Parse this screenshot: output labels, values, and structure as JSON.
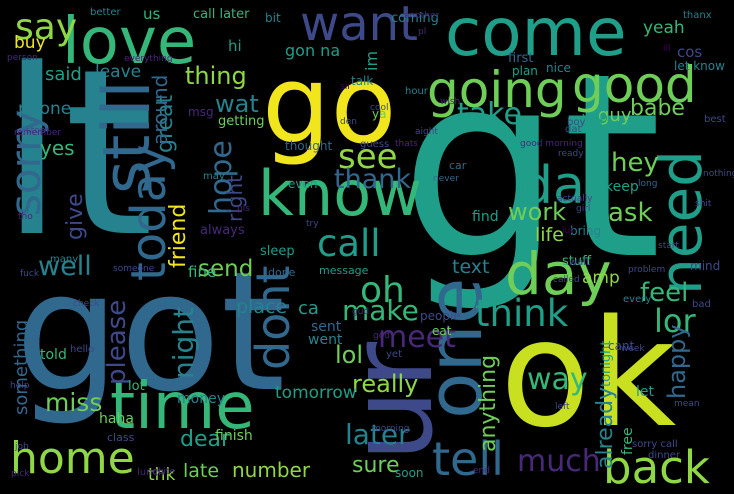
{
  "palette": {
    "background": "#000000",
    "yellow": "#f1e51d",
    "lime": "#c8e020",
    "green": "#6ece58",
    "light_green": "#8fd744",
    "mint": "#35b779",
    "teal": "#1f9e89",
    "teal_dark": "#26828e",
    "blue": "#31688e",
    "indigo": "#3e4989",
    "purple": "#482878",
    "dark_purple": "#440154"
  },
  "words": [
    {
      "text": "lt",
      "color": "teal_dark",
      "orient": "h"
    },
    {
      "text": "gt",
      "color": "teal",
      "orient": "h"
    },
    {
      "text": "go",
      "color": "yellow",
      "orient": "h"
    },
    {
      "text": "got",
      "color": "blue",
      "orient": "h"
    },
    {
      "text": "ok",
      "color": "lime",
      "orient": "h"
    },
    {
      "text": "ur",
      "color": "indigo",
      "orient": "v"
    },
    {
      "text": "come",
      "color": "teal",
      "orient": "h"
    },
    {
      "text": "love",
      "color": "mint",
      "orient": "h"
    },
    {
      "text": "time",
      "color": "mint",
      "orient": "h"
    },
    {
      "text": "one",
      "color": "blue",
      "orient": "v"
    },
    {
      "text": "know",
      "color": "mint",
      "orient": "h"
    },
    {
      "text": "day",
      "color": "green",
      "orient": "h"
    },
    {
      "text": "going",
      "color": "green",
      "orient": "h"
    },
    {
      "text": "need",
      "color": "teal",
      "orient": "v"
    },
    {
      "text": "still",
      "color": "blue",
      "orient": "v"
    },
    {
      "text": "want",
      "color": "indigo",
      "orient": "h"
    },
    {
      "text": "good",
      "color": "green",
      "orient": "h"
    },
    {
      "text": "home",
      "color": "light_green",
      "orient": "h"
    },
    {
      "text": "back",
      "color": "light_green",
      "orient": "h"
    },
    {
      "text": "tell",
      "color": "blue",
      "orient": "h"
    },
    {
      "text": "think",
      "color": "teal",
      "orient": "h"
    },
    {
      "text": "call",
      "color": "teal",
      "orient": "h"
    },
    {
      "text": "da",
      "color": "teal",
      "orient": "h"
    },
    {
      "text": "today",
      "color": "blue",
      "orient": "v"
    },
    {
      "text": "sorry",
      "color": "blue",
      "orient": "v"
    },
    {
      "text": "say",
      "color": "light_green",
      "orient": "h"
    },
    {
      "text": "see",
      "color": "light_green",
      "orient": "h"
    },
    {
      "text": "oh",
      "color": "mint",
      "orient": "h"
    },
    {
      "text": "much",
      "color": "purple",
      "orient": "h"
    },
    {
      "text": "dont",
      "color": "blue",
      "orient": "v"
    },
    {
      "text": "lor",
      "color": "mint",
      "orient": "h"
    },
    {
      "text": "later",
      "color": "teal_dark",
      "orient": "h"
    },
    {
      "text": "take",
      "color": "teal",
      "orient": "h"
    },
    {
      "text": "thank",
      "color": "blue",
      "orient": "h"
    },
    {
      "text": "make",
      "color": "mint",
      "orient": "h"
    },
    {
      "text": "way",
      "color": "mint",
      "orient": "h"
    },
    {
      "text": "hey",
      "color": "green",
      "orient": "h"
    },
    {
      "text": "well",
      "color": "teal_dark",
      "orient": "h"
    },
    {
      "text": "work",
      "color": "green",
      "orient": "h"
    },
    {
      "text": "send",
      "color": "green",
      "orient": "h"
    },
    {
      "text": "miss",
      "color": "green",
      "orient": "h"
    },
    {
      "text": "meet",
      "color": "purple",
      "orient": "h"
    },
    {
      "text": "lol",
      "color": "green",
      "orient": "h"
    },
    {
      "text": "really",
      "color": "light_green",
      "orient": "h"
    },
    {
      "text": "thing",
      "color": "light_green",
      "orient": "h"
    },
    {
      "text": "ask",
      "color": "green",
      "orient": "h"
    },
    {
      "text": "feel",
      "color": "mint",
      "orient": "h"
    },
    {
      "text": "wat",
      "color": "teal_dark",
      "orient": "h"
    },
    {
      "text": "babe",
      "color": "green",
      "orient": "h"
    },
    {
      "text": "text",
      "color": "teal_dark",
      "orient": "h"
    },
    {
      "text": "hope",
      "color": "blue",
      "orient": "v"
    },
    {
      "text": "night",
      "color": "teal_dark",
      "orient": "v"
    },
    {
      "text": "give",
      "color": "indigo",
      "orient": "v"
    },
    {
      "text": "yes",
      "color": "mint",
      "orient": "h"
    },
    {
      "text": "dear",
      "color": "teal",
      "orient": "h"
    },
    {
      "text": "sure",
      "color": "green",
      "orient": "h"
    },
    {
      "text": "life",
      "color": "light_green",
      "orient": "h"
    },
    {
      "text": "guy",
      "color": "green",
      "orient": "h"
    },
    {
      "text": "number",
      "color": "light_green",
      "orient": "h"
    },
    {
      "text": "amp",
      "color": "light_green",
      "orient": "h"
    },
    {
      "text": "tomorrow",
      "color": "teal",
      "orient": "h"
    },
    {
      "text": "thk",
      "color": "light_green",
      "orient": "h"
    },
    {
      "text": "late",
      "color": "green",
      "orient": "h"
    },
    {
      "text": "place",
      "color": "teal_dark",
      "orient": "h"
    },
    {
      "text": "please",
      "color": "indigo",
      "orient": "v"
    },
    {
      "text": "already",
      "color": "teal_dark",
      "orient": "v"
    },
    {
      "text": "happy",
      "color": "blue",
      "orient": "v"
    },
    {
      "text": "anything",
      "color": "green",
      "orient": "v"
    },
    {
      "text": "friend",
      "color": "yellow",
      "orient": "v"
    },
    {
      "text": "great",
      "color": "teal_dark",
      "orient": "v"
    },
    {
      "text": "right",
      "color": "indigo",
      "orient": "v"
    },
    {
      "text": "around",
      "color": "blue",
      "orient": "v"
    },
    {
      "text": "something",
      "color": "blue",
      "orient": "v"
    },
    {
      "text": "phone",
      "color": "teal_dark",
      "orient": "h"
    },
    {
      "text": "said",
      "color": "teal",
      "orient": "h"
    },
    {
      "text": "leave",
      "color": "teal_dark",
      "orient": "h"
    },
    {
      "text": "buy",
      "color": "yellow",
      "orient": "h"
    },
    {
      "text": "hi",
      "color": "teal",
      "orient": "h"
    },
    {
      "text": "gon na",
      "color": "teal",
      "orient": "h"
    },
    {
      "text": "im",
      "color": "teal",
      "orient": "v"
    },
    {
      "text": "cos",
      "color": "indigo",
      "orient": "h"
    },
    {
      "text": "yeah",
      "color": "mint",
      "orient": "h"
    },
    {
      "text": "call later",
      "color": "mint",
      "orient": "h"
    },
    {
      "text": "us",
      "color": "mint",
      "orient": "h"
    },
    {
      "text": "ca",
      "color": "teal",
      "orient": "h"
    },
    {
      "text": "sent",
      "color": "blue",
      "orient": "h"
    },
    {
      "text": "went",
      "color": "teal_dark",
      "orient": "h"
    },
    {
      "text": "fine",
      "color": "mint",
      "orient": "h"
    },
    {
      "text": "told",
      "color": "mint",
      "orient": "h"
    },
    {
      "text": "money",
      "color": "teal_dark",
      "orient": "h"
    },
    {
      "text": "lot",
      "color": "mint",
      "orient": "h"
    },
    {
      "text": "finish",
      "color": "green",
      "orient": "h"
    },
    {
      "text": "haha",
      "color": "green",
      "orient": "h"
    },
    {
      "text": "getting",
      "color": "green",
      "orient": "h"
    },
    {
      "text": "always",
      "color": "purple",
      "orient": "h"
    },
    {
      "text": "even",
      "color": "teal",
      "orient": "h"
    },
    {
      "text": "message",
      "color": "teal",
      "orient": "h"
    },
    {
      "text": "keep",
      "color": "teal",
      "orient": "h"
    },
    {
      "text": "soon",
      "color": "teal",
      "orient": "h"
    },
    {
      "text": "tonight",
      "color": "teal",
      "orient": "v"
    },
    {
      "text": "free",
      "color": "mint",
      "orient": "v"
    },
    {
      "text": "let",
      "color": "teal",
      "orient": "h"
    },
    {
      "text": "stuff",
      "color": "mint",
      "orient": "h"
    },
    {
      "text": "find",
      "color": "teal",
      "orient": "h"
    },
    {
      "text": "sleep",
      "color": "teal",
      "orient": "h"
    },
    {
      "text": "ya",
      "color": "green",
      "orient": "h"
    },
    {
      "text": "yup",
      "color": "teal",
      "orient": "h"
    },
    {
      "text": "msg",
      "color": "purple",
      "orient": "h"
    },
    {
      "text": "first",
      "color": "blue",
      "orient": "h"
    },
    {
      "text": "plan",
      "color": "teal",
      "orient": "h"
    },
    {
      "text": "talk",
      "color": "teal_dark",
      "orient": "h"
    },
    {
      "text": "bit",
      "color": "teal_dark",
      "orient": "h"
    },
    {
      "text": "hour",
      "color": "teal_dark",
      "orient": "h"
    },
    {
      "text": "coming",
      "color": "teal_dark",
      "orient": "h"
    },
    {
      "text": "nice",
      "color": "teal_dark",
      "orient": "h"
    },
    {
      "text": "let know",
      "color": "teal_dark",
      "orient": "h"
    },
    {
      "text": "better",
      "color": "teal_dark",
      "orient": "h"
    },
    {
      "text": "thought",
      "color": "blue",
      "orient": "h"
    },
    {
      "text": "car",
      "color": "blue",
      "orient": "h"
    },
    {
      "text": "done",
      "color": "blue",
      "orient": "h"
    },
    {
      "text": "eat",
      "color": "green",
      "orient": "h"
    },
    {
      "text": "cant",
      "color": "indigo",
      "orient": "h"
    },
    {
      "text": "people",
      "color": "indigo",
      "orient": "h"
    },
    {
      "text": "yet",
      "color": "indigo",
      "orient": "h"
    },
    {
      "text": "mind",
      "color": "indigo",
      "orient": "h"
    },
    {
      "text": "every",
      "color": "teal_dark",
      "orient": "h"
    },
    {
      "text": "bring",
      "color": "teal_dark",
      "orient": "h"
    },
    {
      "text": "class",
      "color": "indigo",
      "orient": "h"
    },
    {
      "text": "many",
      "color": "teal_dark",
      "orient": "h"
    },
    {
      "text": "may",
      "color": "teal_dark",
      "orient": "h"
    },
    {
      "text": "thanx",
      "color": "teal_dark",
      "orient": "h"
    },
    {
      "text": "boy",
      "color": "indigo",
      "orient": "h"
    },
    {
      "text": "guess",
      "color": "indigo",
      "orient": "h"
    },
    {
      "text": "best",
      "color": "indigo",
      "orient": "h"
    },
    {
      "text": "aight",
      "color": "indigo",
      "orient": "h"
    },
    {
      "text": "dat",
      "color": "indigo",
      "orient": "h"
    },
    {
      "text": "ready",
      "color": "indigo",
      "orient": "h"
    },
    {
      "text": "fuck",
      "color": "indigo",
      "orient": "h"
    },
    {
      "text": "sorry call",
      "color": "indigo",
      "orient": "h"
    },
    {
      "text": "mean",
      "color": "indigo",
      "orient": "h"
    },
    {
      "text": "help",
      "color": "indigo",
      "orient": "h"
    },
    {
      "text": "start",
      "color": "indigo",
      "orient": "h"
    },
    {
      "text": "problem",
      "color": "indigo",
      "orient": "h"
    },
    {
      "text": "wait",
      "color": "indigo",
      "orient": "h"
    },
    {
      "text": "called",
      "color": "indigo",
      "orient": "h"
    },
    {
      "text": "never",
      "color": "blue",
      "orient": "h"
    },
    {
      "text": "long",
      "color": "blue",
      "orient": "h"
    },
    {
      "text": "nothing",
      "color": "indigo",
      "orient": "h"
    },
    {
      "text": "shit",
      "color": "indigo",
      "orient": "h"
    },
    {
      "text": "girl",
      "color": "indigo",
      "orient": "h"
    },
    {
      "text": "actually",
      "color": "indigo",
      "orient": "h"
    },
    {
      "text": "someone",
      "color": "indigo",
      "orient": "h"
    },
    {
      "text": "check",
      "color": "indigo",
      "orient": "h"
    },
    {
      "text": "hello",
      "color": "indigo",
      "orient": "h"
    },
    {
      "text": "morning",
      "color": "indigo",
      "orient": "h"
    },
    {
      "text": "dinner",
      "color": "indigo",
      "orient": "h"
    },
    {
      "text": "bad",
      "color": "indigo",
      "orient": "h"
    },
    {
      "text": "week",
      "color": "indigo",
      "orient": "h"
    },
    {
      "text": "left",
      "color": "indigo",
      "orient": "h"
    },
    {
      "text": "cool",
      "color": "indigo",
      "orient": "h"
    },
    {
      "text": "try",
      "color": "indigo",
      "orient": "h"
    },
    {
      "text": "den",
      "color": "indigo",
      "orient": "h"
    },
    {
      "text": "stop",
      "color": "indigo",
      "orient": "h"
    },
    {
      "text": "job",
      "color": "indigo",
      "orient": "h"
    },
    {
      "text": "pick",
      "color": "purple",
      "orient": "h"
    },
    {
      "text": "gud",
      "color": "purple",
      "orient": "h"
    },
    {
      "text": "god",
      "color": "purple",
      "orient": "h"
    },
    {
      "text": "remember",
      "color": "purple",
      "orient": "h"
    },
    {
      "text": "everything",
      "color": "purple",
      "orient": "h"
    },
    {
      "text": "good morning",
      "color": "purple",
      "orient": "h"
    },
    {
      "text": "another",
      "color": "purple",
      "orient": "h"
    },
    {
      "text": "end",
      "color": "purple",
      "orient": "h"
    },
    {
      "text": "wish",
      "color": "purple",
      "orient": "h"
    },
    {
      "text": "quite",
      "color": "purple",
      "orient": "h"
    },
    {
      "text": "lunch",
      "color": "purple",
      "orient": "h"
    },
    {
      "text": "person",
      "color": "purple",
      "orient": "h"
    },
    {
      "text": "thats",
      "color": "purple",
      "orient": "h"
    },
    {
      "text": "tho",
      "color": "purple",
      "orient": "h"
    },
    {
      "text": "pls",
      "color": "purple",
      "orient": "h"
    },
    {
      "text": "pl",
      "color": "purple",
      "orient": "h"
    },
    {
      "text": "lur",
      "color": "dark_purple",
      "orient": "h"
    },
    {
      "text": "ill",
      "color": "dark_purple",
      "orient": "h"
    },
    {
      "text": "sir",
      "color": "dark_purple",
      "orient": "h"
    },
    {
      "text": "ah",
      "color": "dark_purple",
      "orient": "h"
    },
    {
      "text": "liao",
      "color": "dark_purple",
      "orient": "h"
    },
    {
      "text": "worry",
      "color": "dark_purple",
      "orient": "h"
    },
    {
      "text": "early",
      "color": "dark_purple",
      "orient": "h"
    },
    {
      "text": "watching",
      "color": "dark_purple",
      "orient": "h"
    }
  ]
}
